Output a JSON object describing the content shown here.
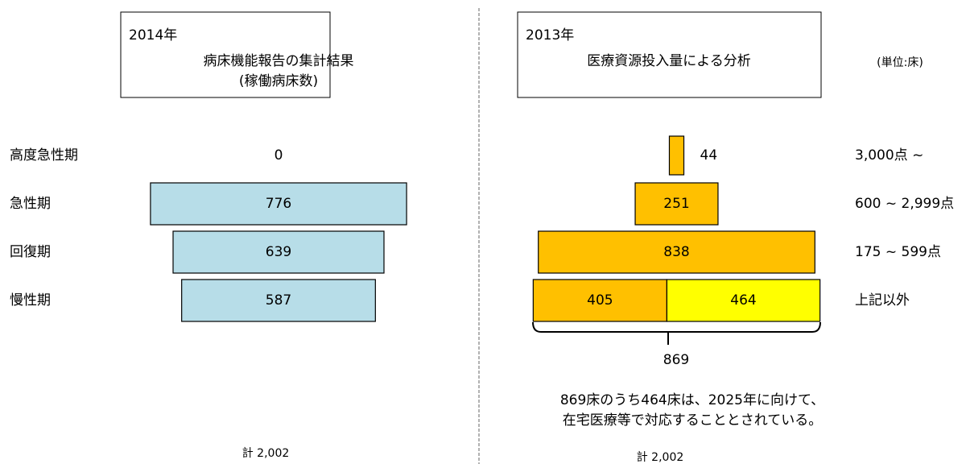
{
  "chart_data": [
    {
      "type": "funnel",
      "title": "2014年",
      "subtitle": [
        "病床機能報告の集計結果",
        "(稼働病床数)"
      ],
      "categories": [
        "高度急性期",
        "急性期",
        "回復期",
        "慢性期"
      ],
      "series": [
        {
          "color": "#b7dde8",
          "values": [
            0,
            776,
            639,
            587
          ]
        }
      ],
      "total_label": "計 2,002"
    },
    {
      "type": "funnel",
      "title": "2013年",
      "subtitle": [
        "医療資源投入量による分析"
      ],
      "unit": "(単位:床)",
      "categories": [
        "3,000点 ~",
        "600 ~ 2,999点",
        "175 ~ 599点",
        "上記以外"
      ],
      "series": [
        {
          "color": "#ffc000",
          "values": [
            44,
            251,
            838,
            405
          ]
        },
        {
          "color": "#ffff00",
          "values": [
            null,
            null,
            null,
            464
          ]
        }
      ],
      "brace_total": 869,
      "annotations": [
        "869床のうち464床は、2025年に向けて、",
        "在宅医療等で対応することとされている。"
      ],
      "total_label": "計 2,002"
    }
  ]
}
